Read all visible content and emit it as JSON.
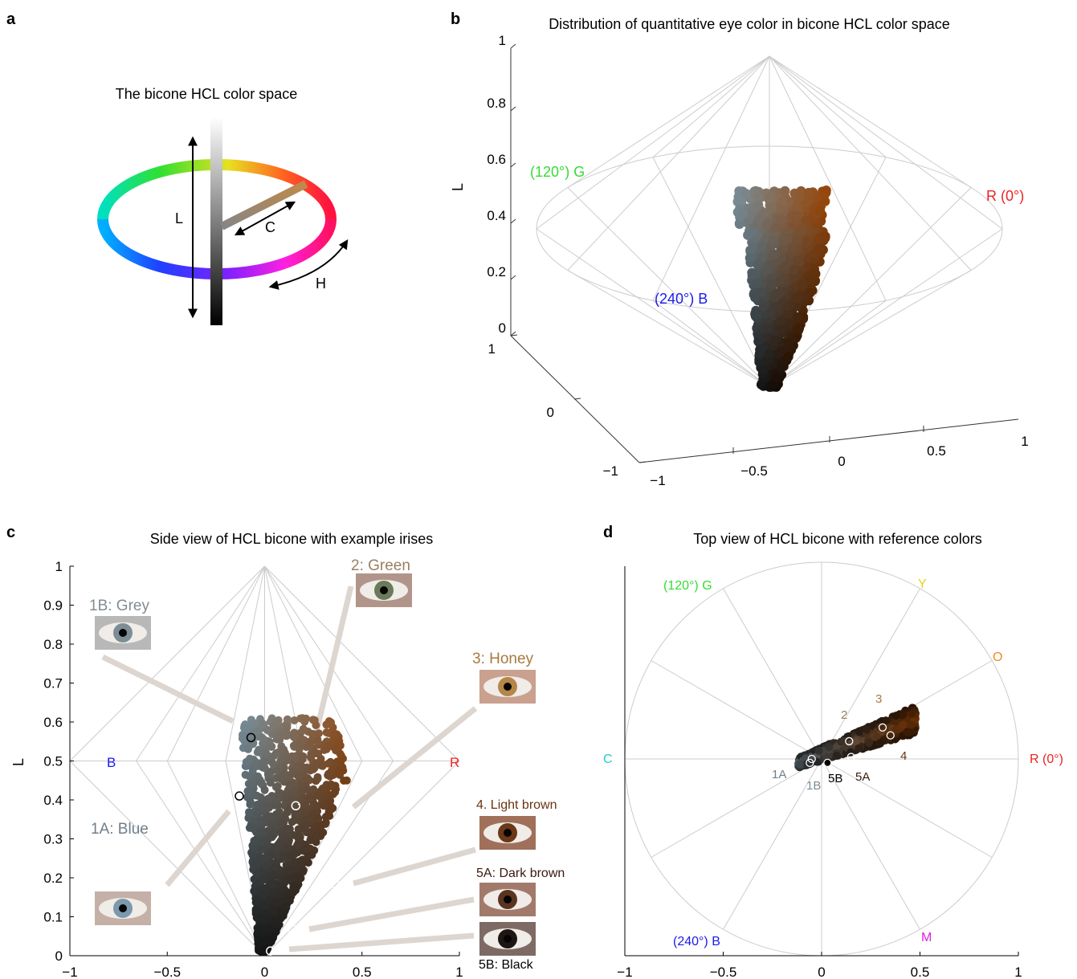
{
  "panels": {
    "a": {
      "letter": "a",
      "title": "The bicone HCL color space",
      "label_L": "L",
      "label_C": "C",
      "label_H": "H"
    },
    "b": {
      "letter": "b",
      "title": "Distribution of quantitative eye color in bicone HCL color space",
      "ylabel": "L",
      "hue_labels": {
        "green": "(120°) G",
        "red": "R (0°)",
        "blue": "(240°) B"
      }
    },
    "c": {
      "letter": "c",
      "title": "Side view of HCL bicone with example irises",
      "ylabel": "L",
      "axis_labels": {
        "B": "B",
        "R": "R"
      },
      "iris_labels": {
        "1B": "1B: Grey",
        "2": "2: Green",
        "3": "3: Honey",
        "4": "4. Light brown",
        "5A": "5A: Dark brown",
        "1A": "1A: Blue",
        "5B": "5B: Black"
      }
    },
    "d": {
      "letter": "d",
      "title": "Top view of HCL bicone with reference colors",
      "ref_labels": {
        "G": "(120°) G",
        "Y": "Y",
        "O": "O",
        "C": "C",
        "R": "R (0°)",
        "B": "(240°) B",
        "M": "M"
      },
      "marker_labels": {
        "1A": "1A",
        "1B": "1B",
        "5B": "5B",
        "5A": "5A",
        "2": "2",
        "3": "3",
        "4": "4"
      }
    }
  },
  "colors": {
    "green": "#33dd33",
    "red": "#ee2222",
    "blue": "#1a1aee",
    "cyan": "#22cccc",
    "yellow": "#e6d21a",
    "orange": "#f08a1e",
    "magenta": "#e020e0",
    "grid": "#cccccc",
    "grey_text": "#7f8c94",
    "green_text": "#9a8060",
    "honey_text": "#a87a40",
    "lightbrown_text": "#6a3414",
    "darkbrown_text": "#3a1a10",
    "blue_text": "#6f7f8a"
  },
  "chart_data": [
    {
      "panel": "b",
      "type": "scatter",
      "title": "Distribution of quantitative eye color in bicone HCL color space",
      "zlabel": "L",
      "ticks": {
        "z": [
          "0",
          "0.2",
          "0.4",
          "0.6",
          "0.8",
          "1"
        ],
        "x": [
          "−1",
          "−0.5",
          "0",
          "0.5",
          "1"
        ],
        "y": [
          "1",
          "0",
          "−1"
        ]
      },
      "ranges": {
        "x": [
          -1,
          1
        ],
        "y": [
          -1,
          1
        ],
        "z": [
          0,
          1
        ]
      },
      "grid": true
    },
    {
      "panel": "c",
      "type": "scatter",
      "title": "Side view of HCL bicone with example irises",
      "xlabel": "",
      "ylabel": "L",
      "xlim": [
        -1,
        1
      ],
      "ylim": [
        0,
        1
      ],
      "xticks": [
        "−1",
        "−0.5",
        "0",
        "0.5",
        "1"
      ],
      "yticks": [
        "0",
        "0.1",
        "0.2",
        "0.3",
        "0.4",
        "0.5",
        "0.6",
        "0.7",
        "0.8",
        "0.9",
        "1"
      ],
      "grid": true,
      "examples": [
        {
          "label": "1A",
          "x": -0.13,
          "y": 0.41
        },
        {
          "label": "1B",
          "x": -0.07,
          "y": 0.56
        },
        {
          "label": "2",
          "x": 0.16,
          "y": 0.385
        },
        {
          "label": "3",
          "x": 0.36,
          "y": 0.34
        },
        {
          "label": "4",
          "x": 0.37,
          "y": 0.18
        },
        {
          "label": "5A",
          "x": 0.14,
          "y": 0.07
        },
        {
          "label": "5B",
          "x": 0.03,
          "y": 0.012
        }
      ]
    },
    {
      "panel": "d",
      "type": "scatter",
      "title": "Top view of HCL bicone with reference colors",
      "xlabel": "",
      "ylabel": "",
      "xlim": [
        -1,
        1
      ],
      "ylim": [
        -1,
        1
      ],
      "xticks": [
        "−1",
        "−0.5",
        "0",
        "0.5",
        "1"
      ],
      "grid": true,
      "examples": [
        {
          "label": "1A",
          "x": -0.06,
          "y": -0.02
        },
        {
          "label": "1B",
          "x": -0.05,
          "y": 0.0
        },
        {
          "label": "5B",
          "x": 0.03,
          "y": -0.02
        },
        {
          "label": "5A",
          "x": 0.15,
          "y": 0.01
        },
        {
          "label": "2",
          "x": 0.14,
          "y": 0.09
        },
        {
          "label": "3",
          "x": 0.31,
          "y": 0.16
        },
        {
          "label": "4",
          "x": 0.35,
          "y": 0.12
        }
      ]
    }
  ]
}
